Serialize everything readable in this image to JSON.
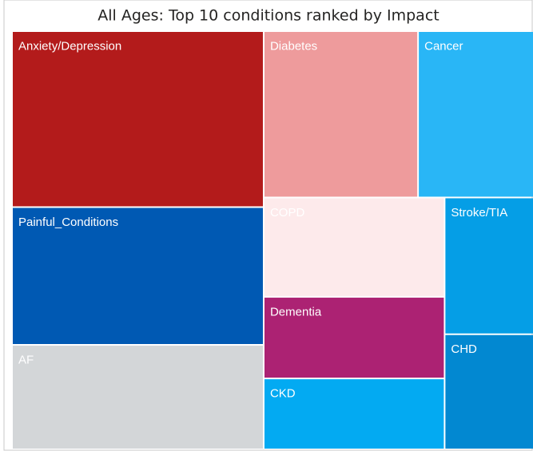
{
  "chart_data": {
    "type": "treemap",
    "title": "All Ages: Top 10 conditions ranked by Impact",
    "categories": [
      "Anxiety/Depression",
      "Painful_Conditions",
      "AF",
      "Diabetes",
      "Cancer",
      "COPD",
      "Dementia",
      "CKD",
      "Stroke/TIA",
      "CHD"
    ],
    "values": [
      69,
      54,
      41,
      40,
      30,
      28,
      23,
      20,
      19,
      16
    ],
    "colors": [
      "#b31b1b",
      "#0059b3",
      "#d3d6d8",
      "#ee9b9c",
      "#29b6f6",
      "#fdeaeb",
      "#ac2273",
      "#03aaf2",
      "#059ee6",
      "#0288d1"
    ]
  }
}
